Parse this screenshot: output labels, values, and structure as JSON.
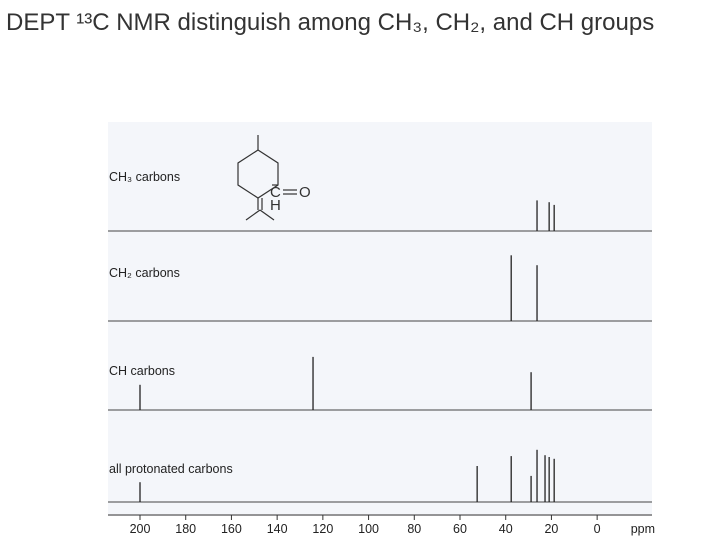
{
  "title": "DEPT ¹³C NMR distinguish among CH₃, CH₂, and CH groups",
  "molecule": {
    "atoms": [
      "C",
      "O",
      "H"
    ]
  },
  "chart_data": [
    {
      "type": "stick",
      "label": "CH₃ carbons",
      "color": "#222222",
      "xlim": [
        214,
        -24
      ],
      "ylim": [
        0,
        100
      ],
      "x": [
        26.3,
        21.0,
        18.8
      ],
      "values": [
        34,
        32,
        29
      ]
    },
    {
      "type": "stick",
      "label": "CH₂ carbons",
      "color": "#222222",
      "xlim": [
        214,
        -24
      ],
      "ylim": [
        0,
        100
      ],
      "x": [
        37.6,
        26.3
      ],
      "values": [
        73,
        62
      ]
    },
    {
      "type": "stick",
      "label": "CH carbons",
      "color": "#222222",
      "xlim": [
        214,
        -24
      ],
      "ylim": [
        0,
        100
      ],
      "x": [
        200.0,
        124.3,
        28.9
      ],
      "values": [
        28,
        59,
        42
      ]
    },
    {
      "type": "stick",
      "label": "all protonated carbons",
      "color": "#222222",
      "xlim": [
        214,
        -24
      ],
      "ylim": [
        0,
        100
      ],
      "x": [
        200.0,
        52.5,
        37.6,
        28.9,
        26.3,
        22.8,
        21.0,
        18.8
      ],
      "values": [
        22,
        40,
        51,
        29,
        58,
        52,
        50,
        48
      ],
      "xticks": [
        200,
        180,
        160,
        140,
        120,
        100,
        80,
        60,
        40,
        20,
        0
      ],
      "xlabel": "ppm"
    }
  ]
}
